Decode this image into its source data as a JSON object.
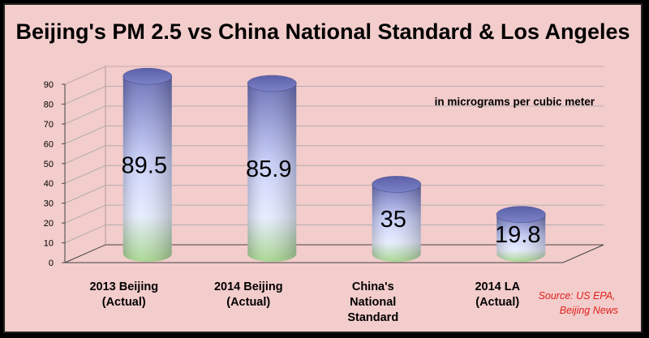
{
  "colors": {
    "background": "#f3cccc",
    "bar_top": "#6a6fb8",
    "bar_mid": "#dde3ff",
    "bar_bottom": "#9fd08a",
    "source_text": "#e0201a"
  },
  "chart_data": {
    "type": "bar",
    "style": "3d-cylinder",
    "title": "Beijing's PM 2.5 vs China National Standard & Los Angeles",
    "unit_note": "in micrograms per cubic meter",
    "source": [
      "Source: US EPA,",
      "Beijing News"
    ],
    "categories": [
      [
        "2013 Beijing",
        "(Actual)"
      ],
      [
        "2014 Beijing",
        "(Actual)"
      ],
      [
        "China's",
        "National",
        "Standard"
      ],
      [
        "2014 LA",
        "(Actual)"
      ]
    ],
    "values": [
      89.5,
      85.9,
      35,
      19.8
    ],
    "data_labels": [
      "89.5",
      "85.9",
      "35",
      "19.8"
    ],
    "yticks": [
      0,
      10,
      20,
      30,
      40,
      50,
      60,
      70,
      80,
      90
    ],
    "ylim": [
      0,
      90
    ],
    "grid": true,
    "legend": "none"
  }
}
